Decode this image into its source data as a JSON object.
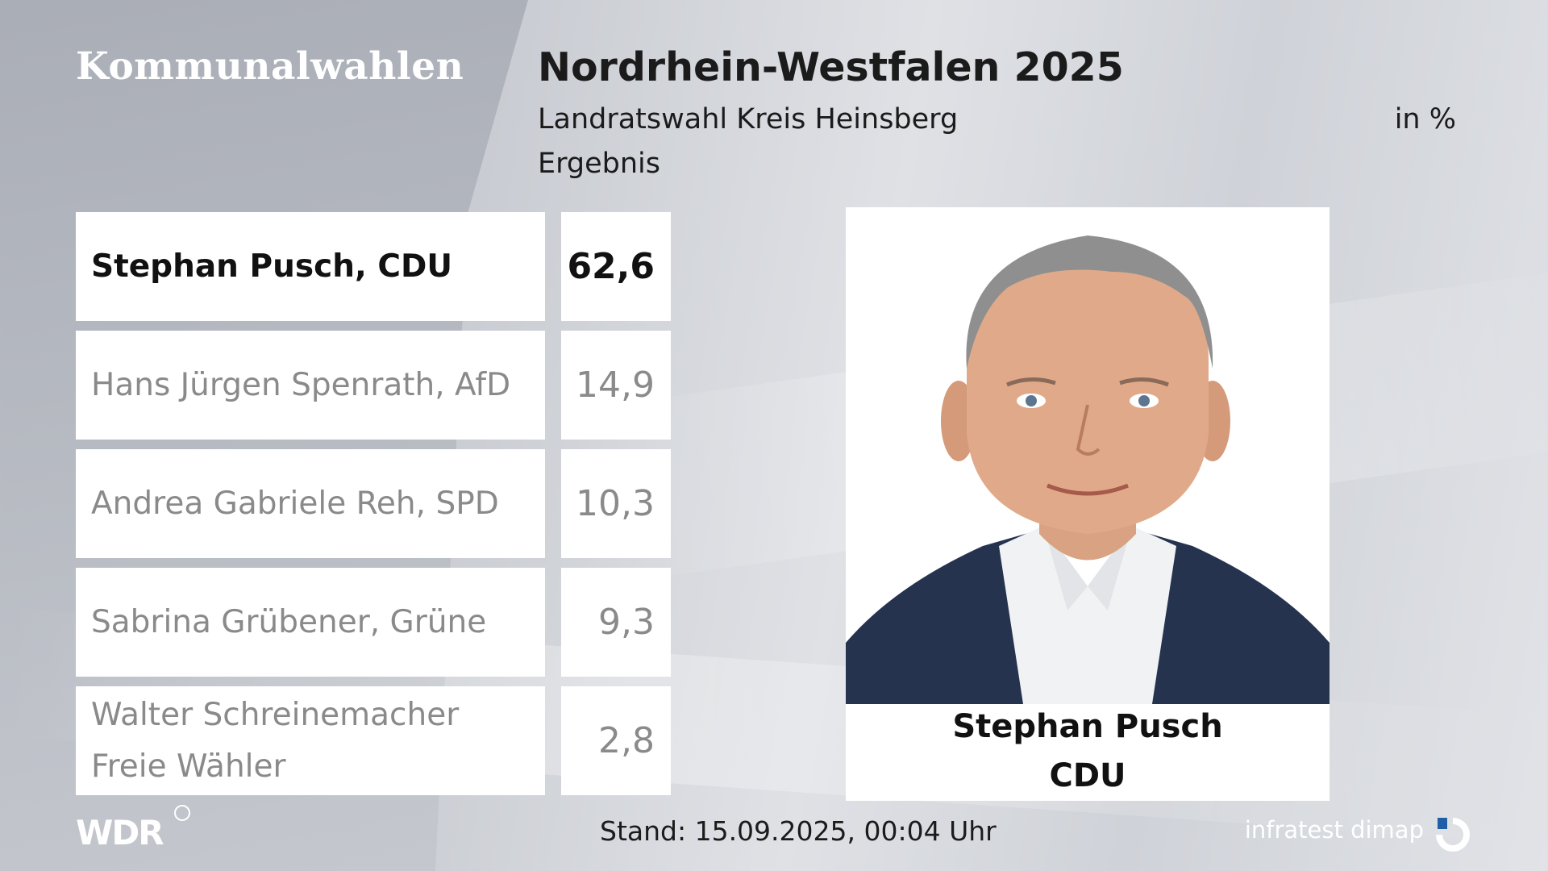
{
  "header": {
    "brand": "Kommunalwahlen",
    "title": "Nordrhein-Westfalen 2025",
    "subtitle": "Landratswahl Kreis Heinsberg",
    "unit": "in %",
    "subtitle2": "Ergebnis"
  },
  "chart_data": {
    "type": "table",
    "title": "Nordrhein-Westfalen 2025",
    "subtitle": "Landratswahl Kreis Heinsberg",
    "unit": "in %",
    "rows": [
      {
        "candidate_lines": [
          "Stephan Pusch, CDU"
        ],
        "value": "62,6",
        "leader": true
      },
      {
        "candidate_lines": [
          "Hans Jürgen Spenrath, AfD"
        ],
        "value": "14,9",
        "leader": false
      },
      {
        "candidate_lines": [
          "Andrea Gabriele Reh, SPD"
        ],
        "value": "10,3",
        "leader": false
      },
      {
        "candidate_lines": [
          "Sabrina Grübener, Grüne"
        ],
        "value": "9,3",
        "leader": false
      },
      {
        "candidate_lines": [
          "Walter Schreinemacher",
          "Freie Wähler"
        ],
        "value": "2,8",
        "leader": false
      }
    ]
  },
  "winner": {
    "name": "Stephan Pusch",
    "party": "CDU"
  },
  "footer": {
    "logo": "WDR",
    "stand": "Stand: 15.09.2025, 00:04 Uhr",
    "source": "infratest dimap"
  },
  "colors": {
    "leader_text": "#111111",
    "other_text": "#8a8a8a",
    "box_background": "#ffffff"
  }
}
